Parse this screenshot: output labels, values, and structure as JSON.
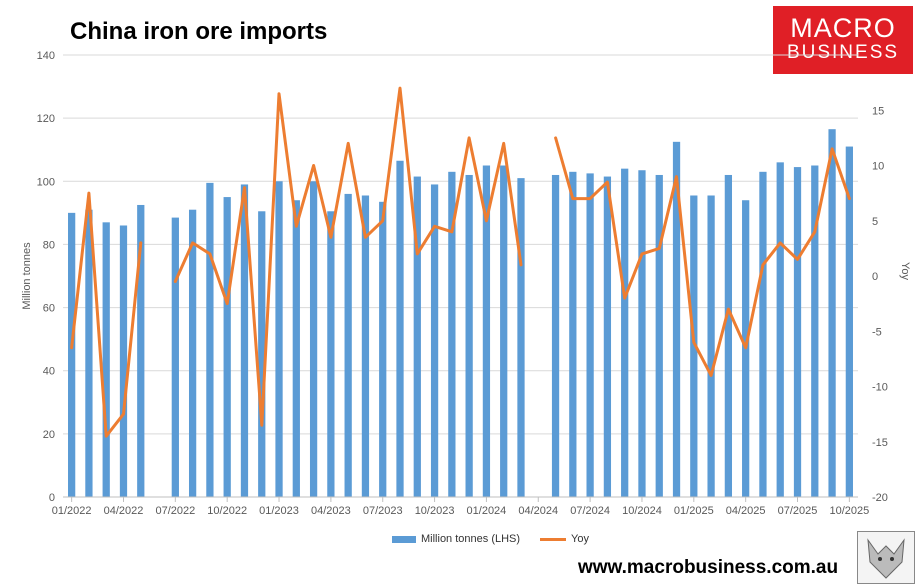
{
  "title": "China iron ore imports",
  "brand": {
    "line1": "MACRO",
    "line2": "BUSINESS",
    "color": "#e01f26"
  },
  "website": "www.macrobusiness.com.au",
  "chart_data": {
    "type": "bar",
    "title": "China iron ore imports",
    "ylabel": "Million tonnes",
    "y2label": "Yoy",
    "ylim": [
      0,
      140
    ],
    "y2lim": [
      -20,
      20
    ],
    "yticks": [
      0,
      20,
      40,
      60,
      80,
      100,
      120,
      140
    ],
    "y2ticks": [
      -20,
      -15,
      -10,
      -5,
      0,
      5,
      10,
      15
    ],
    "xticks": [
      "01/2022",
      "04/2022",
      "07/2022",
      "10/2022",
      "01/2023",
      "04/2023",
      "07/2023",
      "10/2023",
      "01/2024",
      "04/2024",
      "07/2024",
      "10/2024",
      "01/2025",
      "04/2025",
      "07/2025",
      "10/2025"
    ],
    "categories": [
      "01/2022",
      "02/2022",
      "03/2022",
      "04/2022",
      "05/2022",
      "06/2022",
      "07/2022",
      "08/2022",
      "09/2022",
      "10/2022",
      "11/2022",
      "12/2022",
      "01/2023",
      "02/2023",
      "03/2023",
      "04/2023",
      "05/2023",
      "06/2023",
      "07/2023",
      "08/2023",
      "09/2023",
      "10/2023",
      "11/2023",
      "12/2023",
      "01/2024",
      "02/2024",
      "03/2024",
      "04/2024",
      "05/2024",
      "06/2024",
      "07/2024",
      "08/2024",
      "09/2024",
      "10/2024",
      "11/2024",
      "12/2024",
      "01/2025",
      "02/2025",
      "03/2025",
      "04/2025",
      "05/2025",
      "06/2025",
      "07/2025",
      "08/2025",
      "09/2025",
      "10/2025"
    ],
    "series": [
      {
        "name": "Million tonnes (LHS)",
        "type": "bar",
        "axis": "left",
        "color": "#5b9bd5",
        "values": [
          90,
          91,
          87,
          86,
          92.5,
          null,
          88.5,
          91,
          99.5,
          95,
          99,
          90.5,
          100,
          94,
          100,
          90.5,
          96,
          95.5,
          93.5,
          106.5,
          101.5,
          99,
          103,
          102,
          105,
          105,
          101,
          null,
          102,
          103,
          102.5,
          101.5,
          104,
          103.5,
          102,
          112.5,
          95.5,
          95.5,
          102,
          94,
          103,
          106,
          104.5,
          105,
          116.5,
          111
        ]
      },
      {
        "name": "Yoy",
        "type": "line",
        "axis": "right",
        "color": "#ed7d31",
        "values": [
          -6.5,
          7.5,
          -14.5,
          -12.5,
          3,
          null,
          -0.5,
          3,
          2,
          -2.5,
          8,
          -13.5,
          16.5,
          4.5,
          10,
          3.5,
          12,
          3.5,
          5,
          17,
          2,
          4.5,
          4,
          12.5,
          5,
          12,
          1,
          null,
          12.5,
          7,
          7,
          8.5,
          -2,
          2,
          2.5,
          9,
          -6,
          -9,
          -3,
          -6.5,
          1,
          3,
          1.5,
          4,
          11.5,
          7
        ]
      }
    ],
    "legend": "bottom",
    "grid": true
  }
}
